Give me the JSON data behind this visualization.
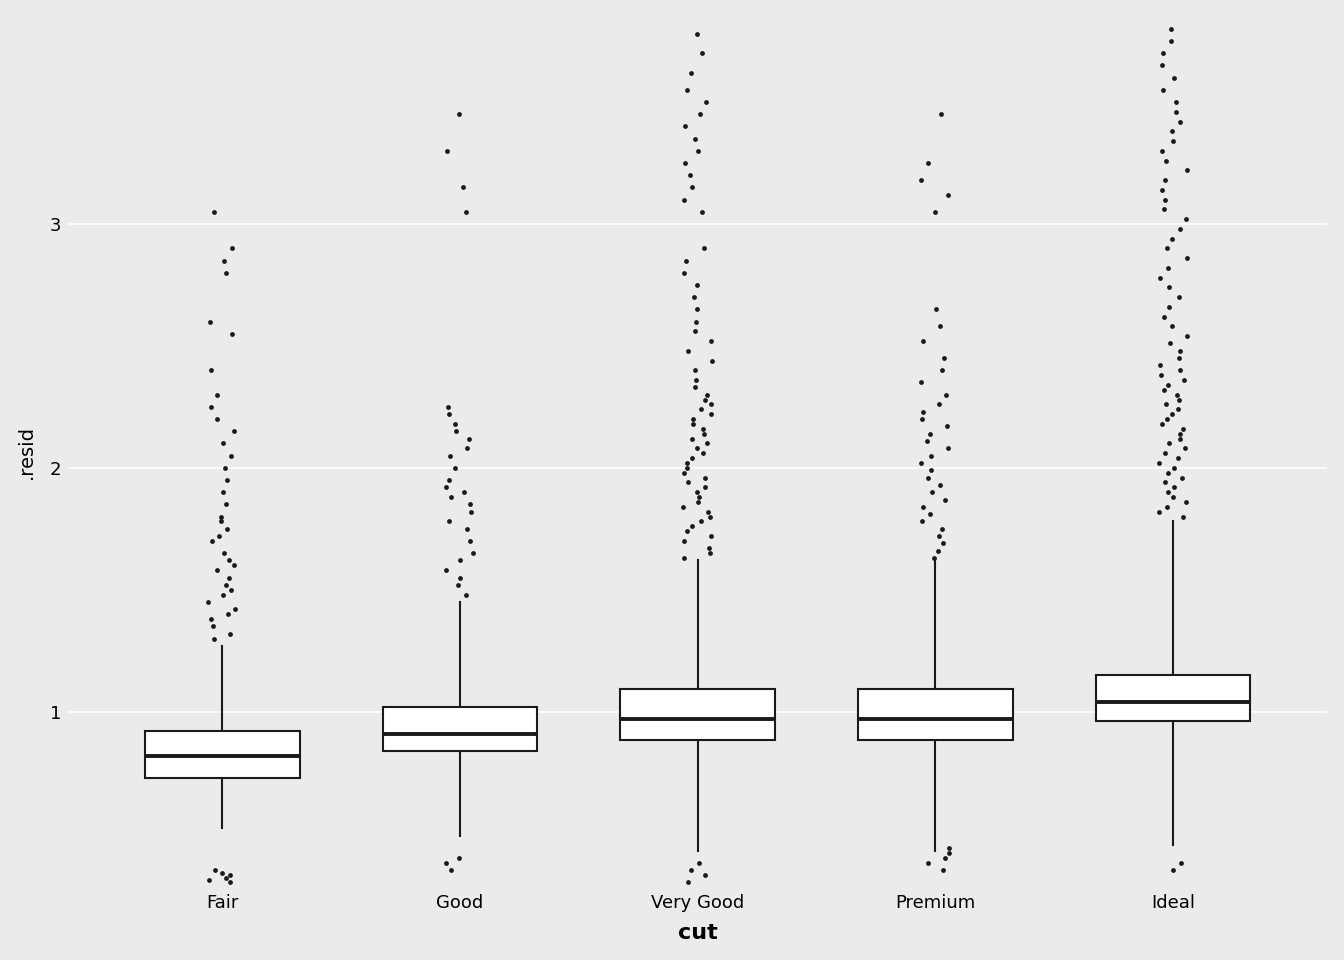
{
  "categories": [
    "Fair",
    "Good",
    "Very Good",
    "Premium",
    "Ideal"
  ],
  "background_color": "#EBEBEB",
  "panel_background": "#EBEBEB",
  "box_color": "white",
  "box_edgecolor": "#1a1a1a",
  "median_color": "#1a1a1a",
  "whisker_color": "#1a1a1a",
  "flier_color": "#1a1a1a",
  "xlabel": "cut",
  "ylabel": ".resid",
  "ylim": [
    0.28,
    3.85
  ],
  "yticks": [
    1,
    2,
    3
  ],
  "xlabel_fontsize": 16,
  "ylabel_fontsize": 14,
  "tick_fontsize": 13,
  "xlabel_fontweight": "bold",
  "box_stats": {
    "Fair": {
      "q1": 0.73,
      "median": 0.82,
      "q3": 0.92,
      "whisker_low": 0.525,
      "whisker_high": 1.27
    },
    "Good": {
      "q1": 0.84,
      "median": 0.91,
      "q3": 1.02,
      "whisker_low": 0.49,
      "whisker_high": 1.45
    },
    "Very Good": {
      "q1": 0.885,
      "median": 0.97,
      "q3": 1.095,
      "whisker_low": 0.43,
      "whisker_high": 1.62
    },
    "Premium": {
      "q1": 0.885,
      "median": 0.97,
      "q3": 1.095,
      "whisker_low": 0.43,
      "whisker_high": 1.62
    },
    "Ideal": {
      "q1": 0.96,
      "median": 1.04,
      "q3": 1.15,
      "whisker_low": 0.455,
      "whisker_high": 1.78
    }
  },
  "outliers": {
    "Fair": [
      0.3,
      0.31,
      0.32,
      0.33,
      0.34,
      0.35,
      1.3,
      1.32,
      1.35,
      1.38,
      1.4,
      1.42,
      1.45,
      1.48,
      1.5,
      1.52,
      1.55,
      1.58,
      1.6,
      1.62,
      1.65,
      1.7,
      1.72,
      1.75,
      1.78,
      1.8,
      1.85,
      1.9,
      1.95,
      2.0,
      2.05,
      2.1,
      2.15,
      2.2,
      2.25,
      2.3,
      2.4,
      2.55,
      2.6,
      2.8,
      2.85,
      2.9,
      3.05
    ],
    "Good": [
      0.35,
      0.38,
      0.4,
      1.48,
      1.52,
      1.55,
      1.58,
      1.62,
      1.65,
      1.7,
      1.75,
      1.78,
      1.82,
      1.85,
      1.88,
      1.9,
      1.92,
      1.95,
      2.0,
      2.05,
      2.08,
      2.12,
      2.15,
      2.18,
      2.22,
      2.25,
      3.05,
      3.15,
      3.3,
      3.45
    ],
    "Very Good": [
      0.3,
      0.33,
      0.35,
      0.38,
      1.63,
      1.65,
      1.67,
      1.7,
      1.72,
      1.74,
      1.76,
      1.78,
      1.8,
      1.82,
      1.84,
      1.86,
      1.88,
      1.9,
      1.92,
      1.94,
      1.96,
      1.98,
      2.0,
      2.02,
      2.04,
      2.06,
      2.08,
      2.1,
      2.12,
      2.14,
      2.16,
      2.18,
      2.2,
      2.22,
      2.24,
      2.26,
      2.28,
      2.3,
      2.33,
      2.36,
      2.4,
      2.44,
      2.48,
      2.52,
      2.56,
      2.6,
      2.65,
      2.7,
      2.75,
      2.8,
      2.85,
      2.9,
      3.05,
      3.1,
      3.15,
      3.2,
      3.25,
      3.3,
      3.35,
      3.4,
      3.45,
      3.5,
      3.55,
      3.62,
      3.7,
      3.78
    ],
    "Premium": [
      0.35,
      0.38,
      0.4,
      0.42,
      0.44,
      1.63,
      1.66,
      1.69,
      1.72,
      1.75,
      1.78,
      1.81,
      1.84,
      1.87,
      1.9,
      1.93,
      1.96,
      1.99,
      2.02,
      2.05,
      2.08,
      2.11,
      2.14,
      2.17,
      2.2,
      2.23,
      2.26,
      2.3,
      2.35,
      2.4,
      2.45,
      2.52,
      2.58,
      2.65,
      3.05,
      3.12,
      3.18,
      3.25,
      3.45
    ],
    "Ideal": [
      0.35,
      0.38,
      1.8,
      1.82,
      1.84,
      1.86,
      1.88,
      1.9,
      1.92,
      1.94,
      1.96,
      1.98,
      2.0,
      2.02,
      2.04,
      2.06,
      2.08,
      2.1,
      2.12,
      2.14,
      2.16,
      2.18,
      2.2,
      2.22,
      2.24,
      2.26,
      2.28,
      2.3,
      2.32,
      2.34,
      2.36,
      2.38,
      2.4,
      2.42,
      2.45,
      2.48,
      2.51,
      2.54,
      2.58,
      2.62,
      2.66,
      2.7,
      2.74,
      2.78,
      2.82,
      2.86,
      2.9,
      2.94,
      2.98,
      3.02,
      3.06,
      3.1,
      3.14,
      3.18,
      3.22,
      3.26,
      3.3,
      3.34,
      3.38,
      3.42,
      3.46,
      3.5,
      3.55,
      3.6,
      3.65,
      3.7,
      3.75,
      3.8
    ]
  },
  "box_width": 0.65,
  "linewidth": 1.5,
  "median_linewidth": 2.8,
  "flier_size": 12
}
